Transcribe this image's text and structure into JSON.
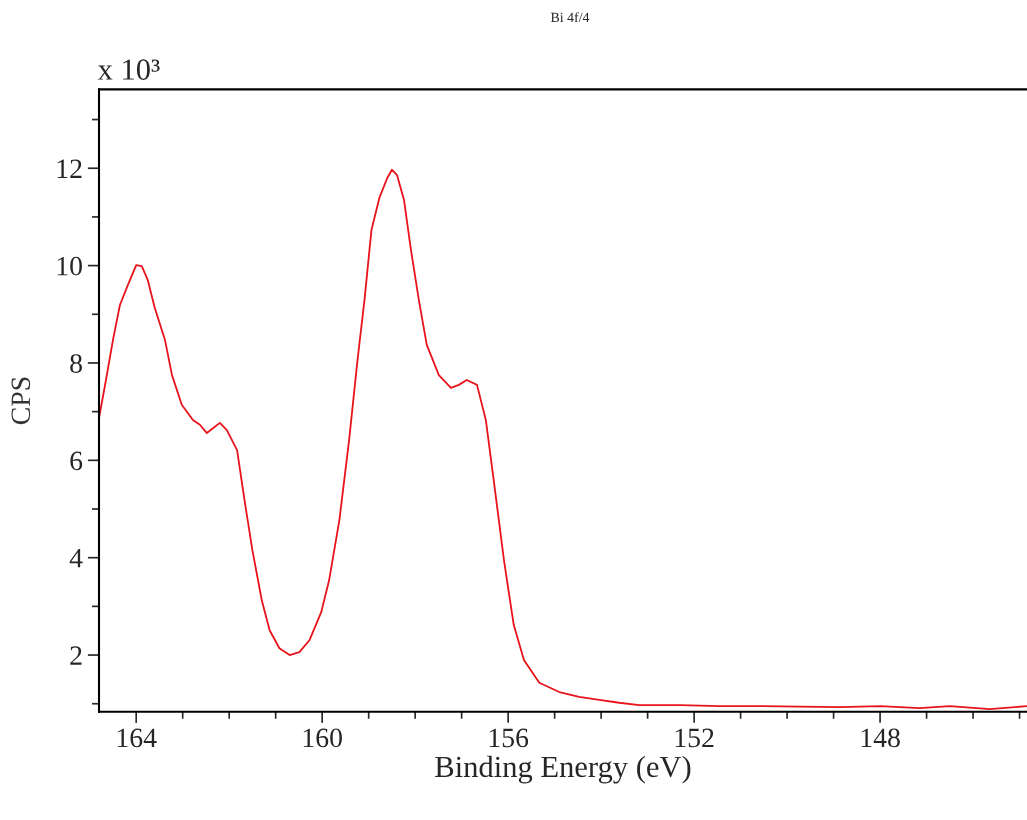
{
  "chart_data": {
    "type": "line",
    "title": "Bi 4f/4",
    "xlabel": "Binding Energy (eV)",
    "ylabel": "CPS",
    "annotations": [
      "x 10³"
    ],
    "x": [
      164.8,
      164.65,
      164.5,
      164.35,
      164.18,
      164.0,
      163.88,
      163.75,
      163.6,
      163.38,
      163.23,
      163.02,
      162.78,
      162.63,
      162.48,
      162.35,
      162.2,
      162.05,
      161.83,
      161.67,
      161.5,
      161.3,
      161.13,
      160.92,
      160.7,
      160.49,
      160.27,
      160.02,
      159.85,
      159.63,
      159.42,
      159.24,
      159.09,
      158.94,
      158.77,
      158.6,
      158.5,
      158.39,
      158.24,
      158.09,
      157.92,
      157.75,
      157.49,
      157.23,
      157.06,
      156.89,
      156.67,
      156.48,
      156.31,
      156.09,
      155.88,
      155.66,
      155.33,
      154.9,
      154.47,
      154.04,
      153.61,
      153.18,
      152.31,
      151.45,
      150.59,
      149.73,
      148.87,
      148.0,
      147.15,
      146.5,
      145.64,
      144.84
    ],
    "series": [
      {
        "color": "#e8141c",
        "values": [
          6.87,
          7.65,
          8.47,
          9.19,
          9.6,
          10.01,
          9.99,
          9.7,
          9.13,
          8.47,
          7.75,
          7.14,
          6.83,
          6.73,
          6.56,
          6.66,
          6.77,
          6.62,
          6.21,
          5.18,
          4.15,
          3.13,
          2.51,
          2.14,
          2.0,
          2.06,
          2.31,
          2.88,
          3.54,
          4.77,
          6.42,
          8.06,
          9.29,
          10.73,
          11.39,
          11.8,
          11.97,
          11.86,
          11.35,
          10.32,
          9.29,
          8.37,
          7.75,
          7.49,
          7.55,
          7.65,
          7.55,
          6.83,
          5.59,
          3.95,
          2.62,
          1.9,
          1.43,
          1.24,
          1.14,
          1.08,
          1.02,
          0.97,
          0.97,
          0.95,
          0.95,
          0.94,
          0.93,
          0.95,
          0.91,
          0.95,
          0.89,
          0.95
        ]
      }
    ],
    "xlim": [
      164.8,
      144.84
    ],
    "xticks": [
      164,
      160,
      156,
      152,
      148
    ],
    "ylim": [
      0.835,
      13.62
    ],
    "yticks": [
      2,
      4,
      6,
      8,
      10,
      12
    ],
    "grid": false,
    "legend": false,
    "marker": "none",
    "line_style": "solid"
  }
}
